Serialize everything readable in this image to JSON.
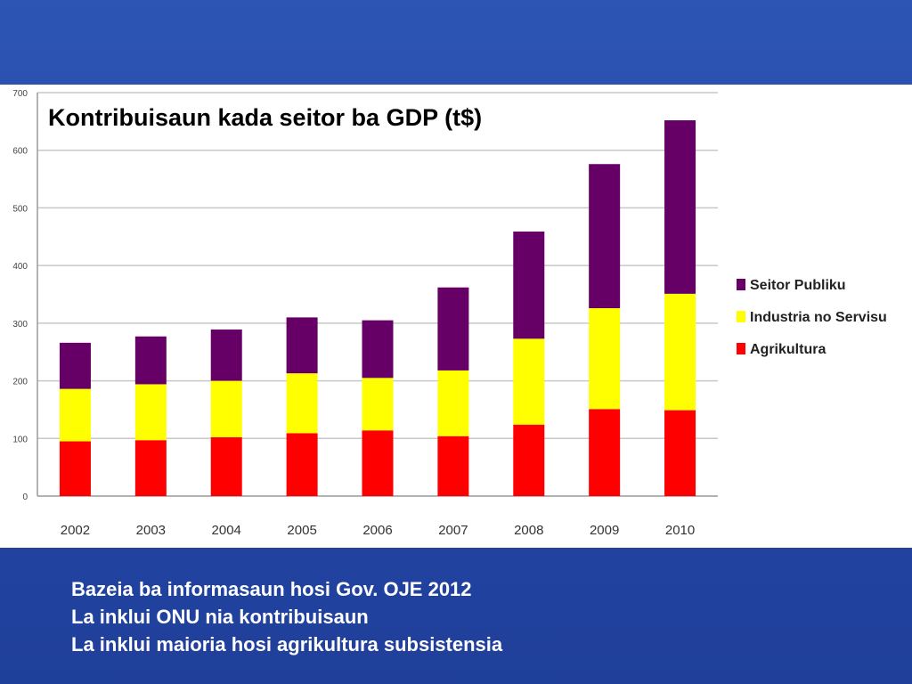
{
  "chart_data": {
    "type": "bar",
    "stacked": true,
    "title": "Kontribuisaun kada seitor ba GDP (t$)",
    "categories": [
      "2002",
      "2003",
      "2004",
      "2005",
      "2006",
      "2007",
      "2008",
      "2009",
      "2010"
    ],
    "series": [
      {
        "name": "Agrikultura",
        "color": "#ff0000",
        "values": [
          95,
          97,
          102,
          109,
          114,
          104,
          124,
          151,
          149
        ]
      },
      {
        "name": "Industria no Servisu",
        "color": "#ffff00",
        "values": [
          91,
          97,
          98,
          104,
          91,
          114,
          149,
          175,
          202
        ]
      },
      {
        "name": "Seitor Publiku",
        "color": "#660066",
        "values": [
          80,
          83,
          89,
          97,
          100,
          144,
          186,
          250,
          301
        ]
      }
    ],
    "ylim": [
      0,
      700
    ],
    "yticks": [
      0,
      100,
      200,
      300,
      400,
      500,
      600,
      700
    ],
    "grid": true,
    "legend": "right"
  },
  "notes": [
    "Bazeia ba informasaun hosi Gov. OJE 2012",
    "La inklui ONU nia kontribuisaun",
    "La inklui maioria hosi agrikultura subsistensia"
  ]
}
